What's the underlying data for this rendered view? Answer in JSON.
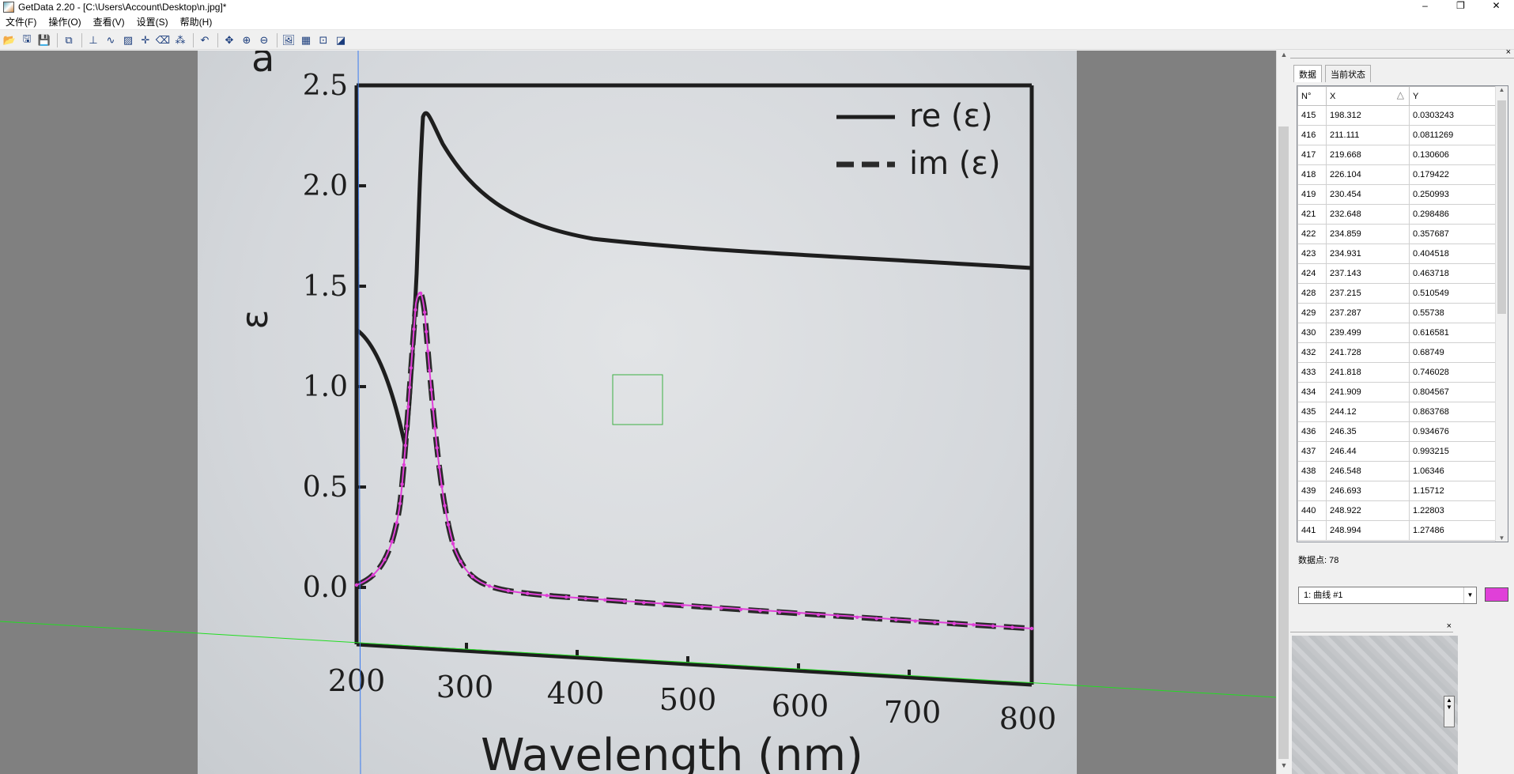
{
  "window": {
    "title": "GetData 2.20 - [C:\\Users\\Account\\Desktop\\n.jpg]*",
    "controls": [
      "–",
      "❐",
      "✕"
    ]
  },
  "menu": [
    "文件(F)",
    "操作(O)",
    "查看(V)",
    "设置(S)",
    "帮助(H)"
  ],
  "toolbar": [
    {
      "name": "open-icon",
      "glyph": "📂"
    },
    {
      "name": "save-as-icon",
      "glyph": "🖫"
    },
    {
      "name": "save-icon",
      "glyph": "💾"
    },
    {
      "name": "sep"
    },
    {
      "name": "copy-icon",
      "glyph": "⧉"
    },
    {
      "name": "sep"
    },
    {
      "name": "axes-icon",
      "glyph": "⊥"
    },
    {
      "name": "auto-trace-icon",
      "glyph": "∿"
    },
    {
      "name": "area-trace-icon",
      "glyph": "▨"
    },
    {
      "name": "point-capture-icon",
      "glyph": "✛"
    },
    {
      "name": "eraser-icon",
      "glyph": "⌫"
    },
    {
      "name": "digitize-icon",
      "glyph": "⁂"
    },
    {
      "name": "sep"
    },
    {
      "name": "undo-icon",
      "glyph": "↶"
    },
    {
      "name": "sep"
    },
    {
      "name": "move-icon",
      "glyph": "✥"
    },
    {
      "name": "zoom-in-icon",
      "glyph": "⊕"
    },
    {
      "name": "zoom-out-icon",
      "glyph": "⊖"
    },
    {
      "name": "sep"
    },
    {
      "name": "image-icon",
      "glyph": "🖼"
    },
    {
      "name": "grid-icon",
      "glyph": "▦"
    },
    {
      "name": "scale-icon",
      "glyph": "⊡"
    },
    {
      "name": "graph-icon",
      "glyph": "◪"
    }
  ],
  "plot": {
    "y_ticks": [
      "2.5",
      "2.0",
      "1.5",
      "1.0",
      "0.5",
      "0.0"
    ],
    "x_ticks": [
      "200",
      "300",
      "400",
      "500",
      "600",
      "700",
      "800"
    ],
    "ylabel": "ε",
    "xlabel": "Wavelength (nm)",
    "corner_label": "a",
    "legend": [
      "re (ε)",
      "im (ε)"
    ],
    "curve_color": "#e040d8"
  },
  "panel": {
    "tabs": [
      "数据",
      "当前状态"
    ],
    "columns": [
      "N°",
      "X",
      "Y"
    ],
    "rows": [
      [
        "415",
        "198.312",
        "0.0303243"
      ],
      [
        "416",
        "211.111",
        "0.0811269"
      ],
      [
        "417",
        "219.668",
        "0.130606"
      ],
      [
        "418",
        "226.104",
        "0.179422"
      ],
      [
        "419",
        "230.454",
        "0.250993"
      ],
      [
        "421",
        "232.648",
        "0.298486"
      ],
      [
        "422",
        "234.859",
        "0.357687"
      ],
      [
        "423",
        "234.931",
        "0.404518"
      ],
      [
        "424",
        "237.143",
        "0.463718"
      ],
      [
        "428",
        "237.215",
        "0.510549"
      ],
      [
        "429",
        "237.287",
        "0.55738"
      ],
      [
        "430",
        "239.499",
        "0.616581"
      ],
      [
        "432",
        "241.728",
        "0.68749"
      ],
      [
        "433",
        "241.818",
        "0.746028"
      ],
      [
        "434",
        "241.909",
        "0.804567"
      ],
      [
        "435",
        "244.12",
        "0.863768"
      ],
      [
        "436",
        "246.35",
        "0.934676"
      ],
      [
        "437",
        "246.44",
        "0.993215"
      ],
      [
        "438",
        "246.548",
        "1.06346"
      ],
      [
        "439",
        "246.693",
        "1.15712"
      ],
      [
        "440",
        "248.922",
        "1.22803"
      ],
      [
        "441",
        "248.994",
        "1.27486"
      ]
    ],
    "count_label": "数据点: 78",
    "curve_selected": "1: 曲线 #1",
    "curve_color": "#e040d8"
  }
}
